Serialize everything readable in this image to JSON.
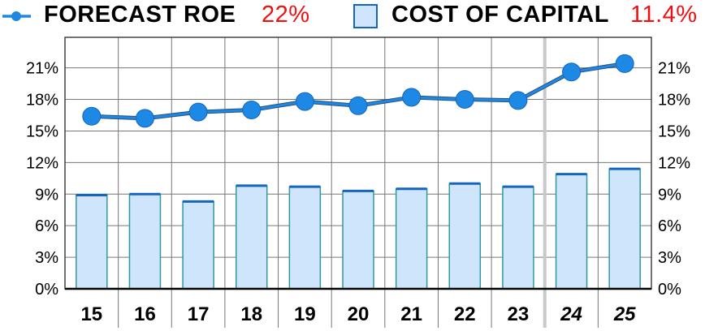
{
  "legend": {
    "roe_label": "FORECAST ROE",
    "roe_value": "22%",
    "capital_label": "COST OF CAPITAL",
    "capital_value": "11.4%"
  },
  "chart_data": {
    "type": "bar",
    "categories": [
      "15",
      "16",
      "17",
      "18",
      "19",
      "20",
      "21",
      "22",
      "23",
      "24",
      "25"
    ],
    "forecast_categories": [
      "24",
      "25"
    ],
    "series": [
      {
        "name": "FORECAST ROE",
        "type": "line",
        "values": [
          16.4,
          16.2,
          16.8,
          17.0,
          17.8,
          17.4,
          18.2,
          18.0,
          17.9,
          20.6,
          21.4
        ]
      },
      {
        "name": "COST OF CAPITAL",
        "type": "bar",
        "values": [
          8.9,
          9.0,
          8.3,
          9.8,
          9.7,
          9.3,
          9.5,
          10.0,
          9.7,
          10.9,
          11.4
        ]
      }
    ],
    "y_ticks": [
      "0%",
      "3%",
      "6%",
      "9%",
      "12%",
      "15%",
      "18%",
      "21%"
    ],
    "ylim": [
      0,
      23.9
    ],
    "grid": true,
    "legend_position": "top",
    "colors": {
      "line": "#1e88e5",
      "bar_fill": "#cfe5fb",
      "bar_stroke": "#1565c0",
      "value_text": "#ee1111",
      "grid": "#777777",
      "forecast_divider": "#c8c8c8"
    }
  }
}
